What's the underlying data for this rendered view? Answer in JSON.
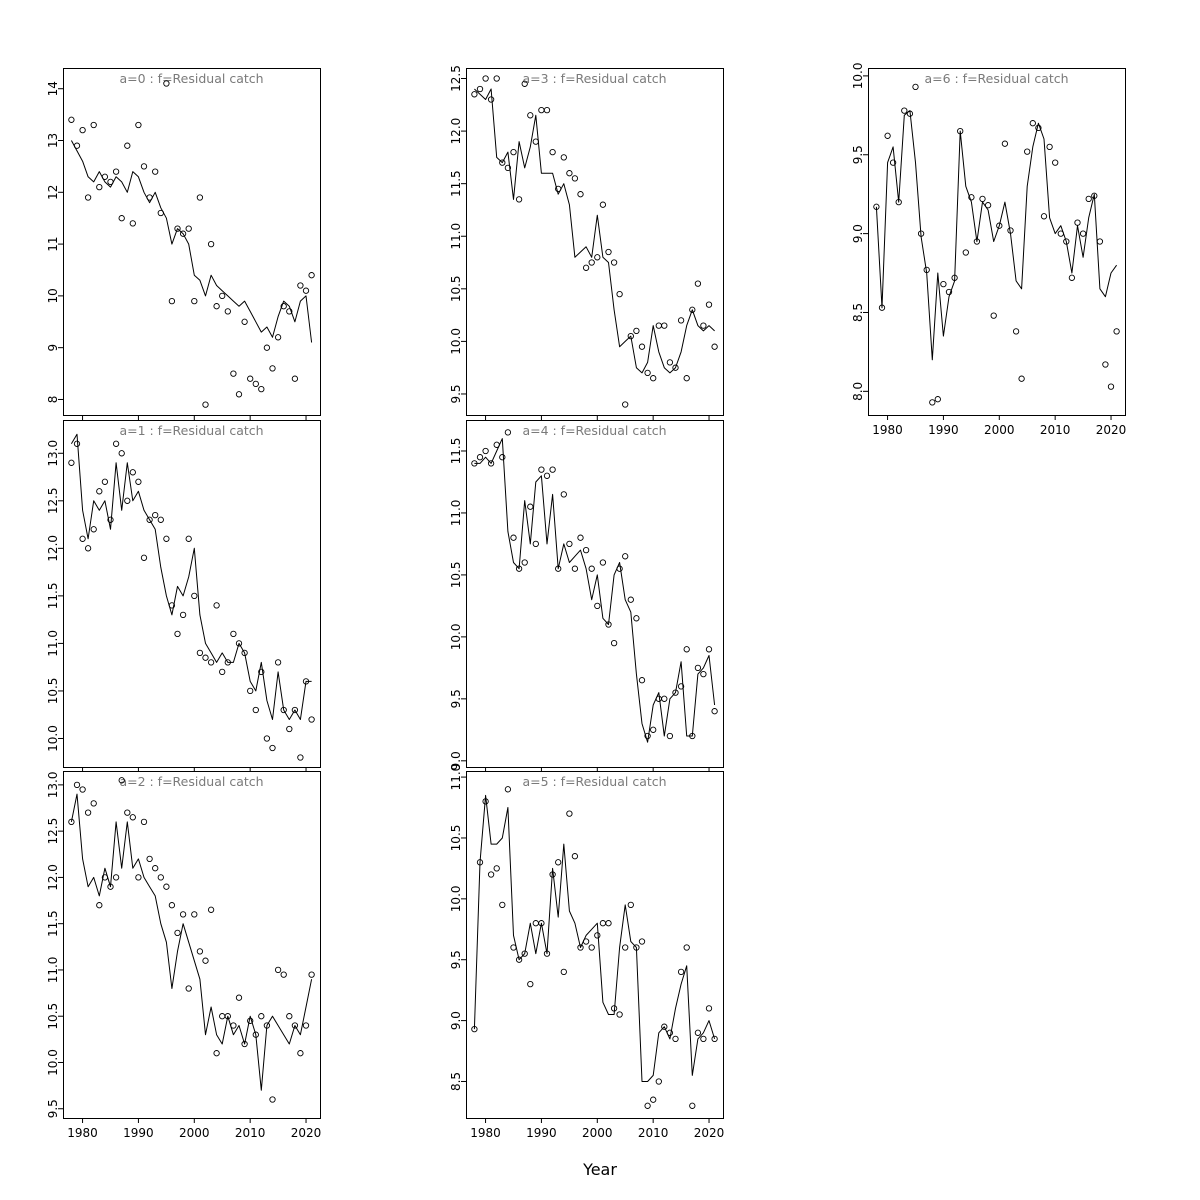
{
  "figure": {
    "xlabel": "Year",
    "background": "#ffffff",
    "title_color": "#7a7a7a",
    "line_color": "#000000",
    "point_color": "#000000",
    "xlim": [
      1976.5,
      2022.5
    ],
    "xticks": [
      1980,
      1990,
      2000,
      2010,
      2020
    ],
    "xtick_labels": [
      "1980",
      "1990",
      "2000",
      "2010",
      "2020"
    ],
    "years": [
      1978,
      1979,
      1980,
      1981,
      1982,
      1983,
      1984,
      1985,
      1986,
      1987,
      1988,
      1989,
      1990,
      1991,
      1992,
      1993,
      1994,
      1995,
      1996,
      1997,
      1998,
      1999,
      2000,
      2001,
      2002,
      2003,
      2004,
      2005,
      2006,
      2007,
      2008,
      2009,
      2010,
      2011,
      2012,
      2013,
      2014,
      2015,
      2016,
      2017,
      2018,
      2019,
      2020,
      2021
    ]
  },
  "chart_data": [
    {
      "type": "scatter",
      "a": 0,
      "title": "a=0  :  f=Residual catch",
      "ylim": [
        7.7,
        14.4
      ],
      "yticks": [
        8,
        9,
        10,
        11,
        12,
        13,
        14
      ],
      "ytick_labels": [
        "8",
        "9",
        "10",
        "11",
        "12",
        "13",
        "14"
      ],
      "grid_pos": {
        "row": 0,
        "col": 0
      },
      "show_x_axis_labels": false,
      "series": [
        {
          "name": "observed",
          "values": [
            13.4,
            12.9,
            13.2,
            11.9,
            13.3,
            12.1,
            12.3,
            12.2,
            12.4,
            11.5,
            12.9,
            11.4,
            13.3,
            12.5,
            11.9,
            12.4,
            11.6,
            14.1,
            9.9,
            11.3,
            11.2,
            11.3,
            9.9,
            11.9,
            7.9,
            11.0,
            9.8,
            10.0,
            9.7,
            8.5,
            8.1,
            9.5,
            8.4,
            8.3,
            8.2,
            9.0,
            8.6,
            9.2,
            9.8,
            9.7,
            8.4,
            10.2,
            10.1,
            10.4
          ]
        },
        {
          "name": "fitted",
          "values": [
            13.0,
            12.8,
            12.6,
            12.3,
            12.2,
            12.4,
            12.2,
            12.1,
            12.3,
            12.2,
            12.0,
            12.4,
            12.3,
            12.0,
            11.8,
            12.0,
            11.7,
            11.5,
            11.0,
            11.3,
            11.2,
            11.0,
            10.4,
            10.3,
            10.0,
            10.4,
            10.2,
            10.1,
            10.0,
            9.9,
            9.8,
            9.9,
            9.7,
            9.5,
            9.3,
            9.4,
            9.2,
            9.6,
            9.9,
            9.8,
            9.5,
            9.9,
            10.0,
            9.1
          ]
        }
      ]
    },
    {
      "type": "scatter",
      "a": 1,
      "title": "a=1  :  f=Residual catch",
      "ylim": [
        9.7,
        13.35
      ],
      "yticks": [
        10.0,
        10.5,
        11.0,
        11.5,
        12.0,
        12.5,
        13.0
      ],
      "ytick_labels": [
        "10.0",
        "10.5",
        "11.0",
        "11.5",
        "12.0",
        "12.5",
        "13.0"
      ],
      "grid_pos": {
        "row": 1,
        "col": 0
      },
      "show_x_axis_labels": false,
      "series": [
        {
          "name": "observed",
          "values": [
            12.9,
            13.1,
            12.1,
            12.0,
            12.2,
            12.6,
            12.7,
            12.3,
            13.1,
            13.0,
            12.5,
            12.8,
            12.7,
            11.9,
            12.3,
            12.35,
            12.3,
            12.1,
            11.4,
            11.1,
            11.3,
            12.1,
            11.5,
            10.9,
            10.85,
            10.8,
            11.4,
            10.7,
            10.8,
            11.1,
            11.0,
            10.9,
            10.5,
            10.3,
            10.7,
            10.0,
            9.9,
            10.8,
            10.3,
            10.1,
            10.3,
            9.8,
            10.6,
            10.2
          ]
        },
        {
          "name": "fitted",
          "values": [
            13.1,
            13.2,
            12.4,
            12.1,
            12.5,
            12.4,
            12.5,
            12.2,
            12.9,
            12.4,
            12.9,
            12.5,
            12.6,
            12.4,
            12.3,
            12.2,
            11.8,
            11.5,
            11.3,
            11.6,
            11.5,
            11.7,
            12.0,
            11.3,
            11.0,
            10.9,
            10.8,
            10.9,
            10.8,
            10.8,
            11.0,
            10.9,
            10.6,
            10.5,
            10.8,
            10.4,
            10.2,
            10.7,
            10.3,
            10.2,
            10.3,
            10.2,
            10.6,
            10.6
          ]
        }
      ]
    },
    {
      "type": "scatter",
      "a": 2,
      "title": "a=2  :  f=Residual catch",
      "ylim": [
        9.4,
        13.15
      ],
      "yticks": [
        9.5,
        10.0,
        10.5,
        11.0,
        11.5,
        12.0,
        12.5,
        13.0
      ],
      "ytick_labels": [
        "9.5",
        "10.0",
        "10.5",
        "11.0",
        "11.5",
        "12.0",
        "12.5",
        "13.0"
      ],
      "grid_pos": {
        "row": 2,
        "col": 0
      },
      "show_x_axis_labels": true,
      "series": [
        {
          "name": "observed",
          "values": [
            12.6,
            13.0,
            12.95,
            12.7,
            12.8,
            11.7,
            12.0,
            11.9,
            12.0,
            13.05,
            12.7,
            12.65,
            12.0,
            12.6,
            12.2,
            12.1,
            12.0,
            11.9,
            11.7,
            11.4,
            11.6,
            10.8,
            11.6,
            11.2,
            11.1,
            11.65,
            10.1,
            10.5,
            10.5,
            10.4,
            10.7,
            10.2,
            10.45,
            10.3,
            10.5,
            10.4,
            9.6,
            11.0,
            10.95,
            10.5,
            10.4,
            10.1,
            10.4,
            10.95
          ]
        },
        {
          "name": "fitted",
          "values": [
            12.6,
            12.9,
            12.2,
            11.9,
            12.0,
            11.8,
            12.1,
            11.9,
            12.6,
            12.1,
            12.6,
            12.1,
            12.2,
            12.0,
            11.9,
            11.8,
            11.5,
            11.3,
            10.8,
            11.2,
            11.5,
            11.3,
            11.1,
            10.9,
            10.3,
            10.6,
            10.3,
            10.2,
            10.5,
            10.3,
            10.4,
            10.2,
            10.5,
            10.3,
            9.7,
            10.4,
            10.5,
            10.4,
            10.3,
            10.2,
            10.4,
            10.3,
            10.6,
            10.9
          ]
        }
      ]
    },
    {
      "type": "scatter",
      "a": 3,
      "title": "a=3  :  f=Residual catch",
      "ylim": [
        9.3,
        12.6
      ],
      "yticks": [
        9.5,
        10.0,
        10.5,
        11.0,
        11.5,
        12.0,
        12.5
      ],
      "ytick_labels": [
        "9.5",
        "10.0",
        "10.5",
        "11.0",
        "11.5",
        "12.0",
        "12.5"
      ],
      "grid_pos": {
        "row": 0,
        "col": 1
      },
      "show_x_axis_labels": false,
      "series": [
        {
          "name": "observed",
          "values": [
            12.35,
            12.4,
            12.5,
            12.3,
            12.5,
            11.7,
            11.65,
            11.8,
            11.35,
            12.45,
            12.15,
            11.9,
            12.2,
            12.2,
            11.8,
            11.45,
            11.75,
            11.6,
            11.55,
            11.4,
            10.7,
            10.75,
            10.8,
            11.3,
            10.85,
            10.75,
            10.45,
            9.4,
            10.05,
            10.1,
            9.95,
            9.7,
            9.65,
            10.15,
            10.15,
            9.8,
            9.75,
            10.2,
            9.65,
            10.3,
            10.55,
            10.15,
            10.35,
            9.95
          ]
        },
        {
          "name": "fitted",
          "values": [
            12.4,
            12.35,
            12.3,
            12.4,
            11.75,
            11.7,
            11.8,
            11.35,
            11.9,
            11.65,
            11.85,
            12.15,
            11.6,
            11.6,
            11.6,
            11.4,
            11.5,
            11.3,
            10.8,
            10.85,
            10.9,
            10.8,
            11.2,
            10.8,
            10.75,
            10.3,
            9.95,
            10.0,
            10.05,
            9.75,
            9.7,
            9.8,
            10.15,
            9.9,
            9.75,
            9.7,
            9.75,
            9.9,
            10.15,
            10.3,
            10.15,
            10.1,
            10.15,
            10.1
          ]
        }
      ]
    },
    {
      "type": "scatter",
      "a": 4,
      "title": "a=4  :  f=Residual catch",
      "ylim": [
        8.95,
        11.75
      ],
      "yticks": [
        9.0,
        9.5,
        10.0,
        10.5,
        11.0,
        11.5
      ],
      "ytick_labels": [
        "9.0",
        "9.5",
        "10.0",
        "10.5",
        "11.0",
        "11.5"
      ],
      "grid_pos": {
        "row": 1,
        "col": 1
      },
      "show_x_axis_labels": false,
      "series": [
        {
          "name": "observed",
          "values": [
            11.4,
            11.45,
            11.5,
            11.4,
            11.55,
            11.45,
            11.65,
            10.8,
            10.55,
            10.6,
            11.05,
            10.75,
            11.35,
            11.3,
            11.35,
            10.55,
            11.15,
            10.75,
            10.55,
            10.8,
            10.7,
            10.55,
            10.25,
            10.6,
            10.1,
            9.95,
            10.55,
            10.65,
            10.3,
            10.15,
            9.65,
            9.2,
            9.25,
            9.5,
            9.5,
            9.2,
            9.55,
            9.6,
            9.9,
            9.2,
            9.75,
            9.7,
            9.9,
            9.4
          ]
        },
        {
          "name": "fitted",
          "values": [
            11.4,
            11.4,
            11.45,
            11.4,
            11.5,
            11.6,
            10.85,
            10.6,
            10.55,
            11.1,
            10.75,
            11.25,
            11.3,
            10.75,
            11.15,
            10.55,
            10.75,
            10.6,
            10.65,
            10.7,
            10.55,
            10.3,
            10.5,
            10.15,
            10.1,
            10.5,
            10.6,
            10.3,
            10.2,
            9.7,
            9.3,
            9.15,
            9.45,
            9.55,
            9.2,
            9.5,
            9.55,
            9.8,
            9.2,
            9.2,
            9.7,
            9.75,
            9.85,
            9.45
          ]
        }
      ]
    },
    {
      "type": "scatter",
      "a": 5,
      "title": "a=5  :  f=Residual catch",
      "ylim": [
        8.2,
        11.05
      ],
      "yticks": [
        8.5,
        9.0,
        9.5,
        10.0,
        10.5,
        11.0
      ],
      "ytick_labels": [
        "8.5",
        "9.0",
        "9.5",
        "10.0",
        "10.5",
        "11.0"
      ],
      "grid_pos": {
        "row": 2,
        "col": 1
      },
      "show_x_axis_labels": true,
      "series": [
        {
          "name": "observed",
          "values": [
            8.93,
            10.3,
            10.8,
            10.2,
            10.25,
            9.95,
            10.9,
            9.6,
            9.5,
            9.55,
            9.3,
            9.8,
            9.8,
            9.55,
            10.2,
            10.3,
            9.4,
            10.7,
            10.35,
            9.6,
            9.65,
            9.6,
            9.7,
            9.8,
            9.8,
            9.1,
            9.05,
            9.6,
            9.95,
            9.6,
            9.65,
            8.3,
            8.35,
            8.5,
            8.95,
            8.9,
            8.85,
            9.4,
            9.6,
            8.3,
            8.9,
            8.85,
            9.1,
            8.85
          ]
        },
        {
          "name": "fitted",
          "values": [
            8.93,
            10.3,
            10.85,
            10.45,
            10.45,
            10.5,
            10.75,
            9.7,
            9.5,
            9.55,
            9.8,
            9.55,
            9.8,
            9.55,
            10.25,
            9.85,
            10.45,
            9.9,
            9.8,
            9.6,
            9.7,
            9.75,
            9.8,
            9.15,
            9.05,
            9.05,
            9.6,
            9.95,
            9.65,
            9.6,
            8.5,
            8.5,
            8.55,
            8.9,
            8.95,
            8.85,
            9.1,
            9.3,
            9.45,
            8.55,
            8.85,
            8.9,
            9.0,
            8.85
          ]
        }
      ]
    },
    {
      "type": "scatter",
      "a": 6,
      "title": "a=6  :  f=Residual catch",
      "ylim": [
        7.85,
        10.05
      ],
      "yticks": [
        8.0,
        8.5,
        9.0,
        9.5,
        10.0
      ],
      "ytick_labels": [
        "8.0",
        "8.5",
        "9.0",
        "9.5",
        "10.0"
      ],
      "grid_pos": {
        "row": 0,
        "col": 2
      },
      "show_x_axis_labels": true,
      "series": [
        {
          "name": "observed",
          "values": [
            9.17,
            8.53,
            9.62,
            9.45,
            9.2,
            9.78,
            9.76,
            9.93,
            9.0,
            8.77,
            7.93,
            7.95,
            8.68,
            8.63,
            8.72,
            9.65,
            8.88,
            9.23,
            8.95,
            9.22,
            9.18,
            8.48,
            9.05,
            9.57,
            9.02,
            8.38,
            8.08,
            9.52,
            9.7,
            9.67,
            9.11,
            9.55,
            9.45,
            9.0,
            8.95,
            8.72,
            9.07,
            9.0,
            9.22,
            9.24,
            8.95,
            8.17,
            8.03,
            8.38
          ]
        },
        {
          "name": "fitted",
          "values": [
            9.17,
            8.53,
            9.45,
            9.55,
            9.2,
            9.75,
            9.78,
            9.45,
            8.98,
            8.75,
            8.2,
            8.75,
            8.35,
            8.6,
            8.7,
            9.65,
            9.3,
            9.2,
            8.95,
            9.2,
            9.15,
            8.95,
            9.05,
            9.2,
            9.0,
            8.7,
            8.65,
            9.3,
            9.55,
            9.7,
            9.6,
            9.1,
            9.0,
            9.05,
            8.95,
            8.75,
            9.05,
            8.85,
            9.1,
            9.25,
            8.65,
            8.6,
            8.75,
            8.8
          ]
        }
      ]
    }
  ]
}
